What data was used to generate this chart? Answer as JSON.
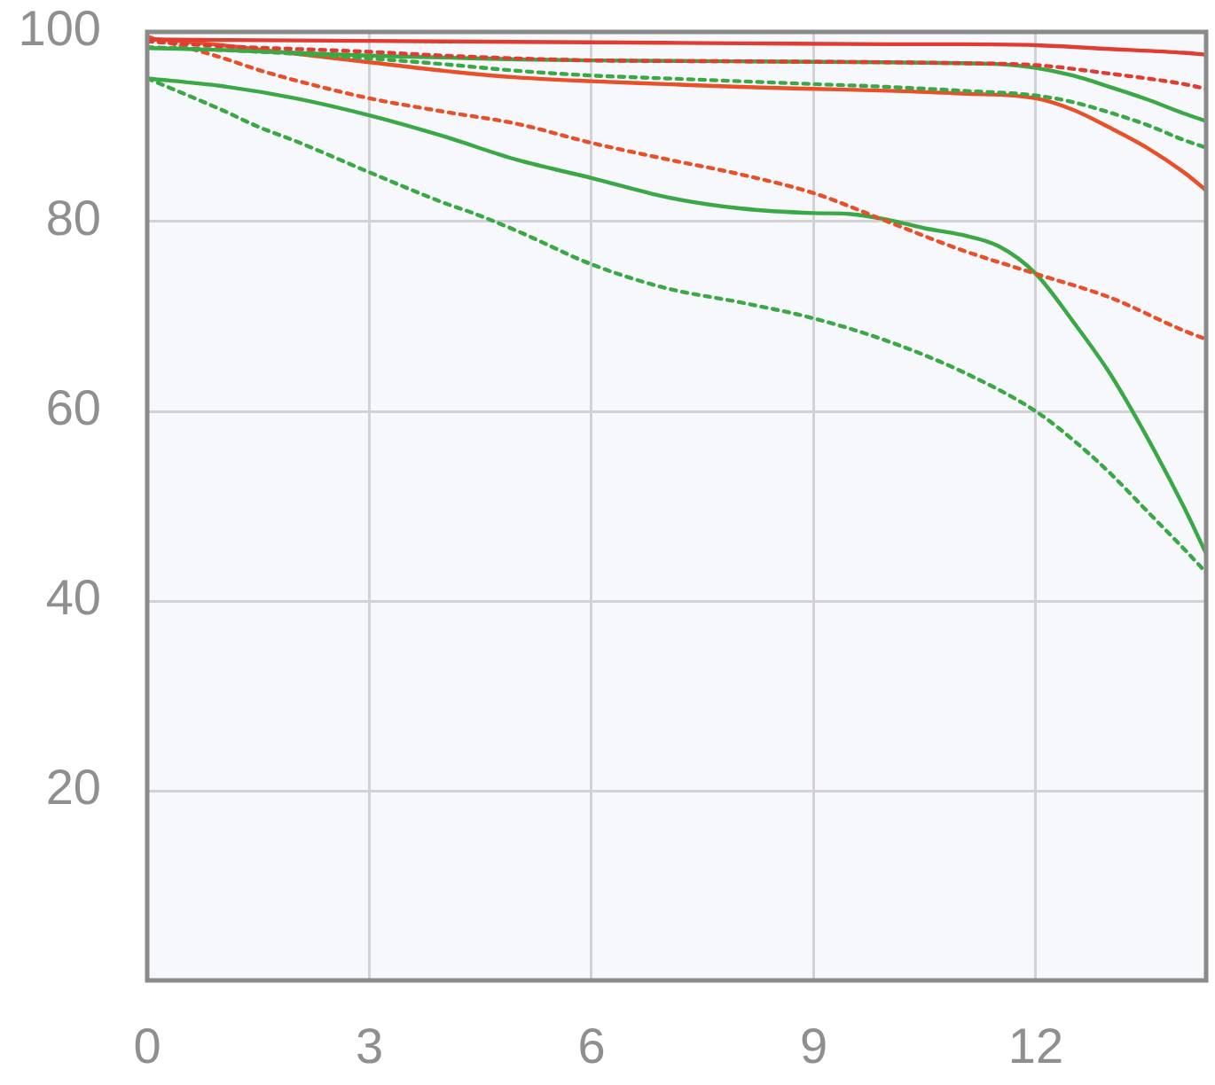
{
  "chart_data": {
    "type": "line",
    "xlim": [
      0,
      14.3
    ],
    "xticks": [
      0,
      3,
      6,
      9,
      12
    ],
    "ylim": [
      0,
      100
    ],
    "yticks": [
      20,
      40,
      60,
      80,
      100
    ],
    "grid": true,
    "marker": "none",
    "series": [
      {
        "color": "#e03c31",
        "line_style": "solid",
        "x": [
          0,
          2,
          4,
          6,
          8,
          10,
          11,
          12,
          13,
          14,
          14.3
        ],
        "values": [
          99.2,
          99.1,
          99,
          98.9,
          98.8,
          98.7,
          98.7,
          98.6,
          98.2,
          97.8,
          97.6
        ]
      },
      {
        "color": "#e03c31",
        "line_style": "dotted",
        "x": [
          0,
          1,
          2,
          3,
          4,
          5,
          6,
          8,
          10,
          11,
          12,
          13,
          14,
          14.3
        ],
        "values": [
          99,
          98.5,
          98.2,
          97.9,
          97.5,
          97.2,
          97,
          96.9,
          96.8,
          96.7,
          96.5,
          95.6,
          94.5,
          94
        ]
      },
      {
        "color": "#3aa845",
        "line_style": "solid",
        "x": [
          0,
          1,
          2,
          3,
          4,
          5,
          6,
          8,
          10,
          11,
          11.5,
          12,
          12.5,
          13,
          13.5,
          14,
          14.3
        ],
        "values": [
          98.3,
          98.1,
          97.8,
          97.5,
          97.3,
          97.1,
          97,
          96.9,
          96.8,
          96.7,
          96.6,
          96.2,
          95.4,
          94.2,
          92.9,
          91.4,
          90.6
        ]
      },
      {
        "color": "#3aa845",
        "line_style": "dotted",
        "x": [
          0,
          1,
          2,
          3,
          4,
          5,
          6,
          7,
          8,
          9,
          10,
          11,
          12,
          12.5,
          13,
          13.5,
          14,
          14.3
        ],
        "values": [
          98.4,
          98.1,
          97.7,
          97.2,
          96.6,
          95.9,
          95.4,
          95.1,
          94.8,
          94.5,
          94.2,
          93.8,
          93.3,
          92.6,
          91.5,
          90.2,
          88.6,
          87.8
        ]
      },
      {
        "color": "#e8502a",
        "line_style": "solid",
        "x": [
          0,
          1,
          2,
          3,
          4,
          5,
          6,
          7,
          8,
          9,
          10,
          11,
          12,
          12.5,
          13,
          13.5,
          14,
          14.3
        ],
        "values": [
          99.3,
          98.6,
          97.7,
          96.8,
          95.9,
          95.2,
          94.8,
          94.5,
          94.2,
          94,
          93.8,
          93.5,
          93,
          91.8,
          89.9,
          87.8,
          85.2,
          83.3
        ]
      },
      {
        "color": "#e8502a",
        "line_style": "dotted",
        "x": [
          0,
          1,
          1.5,
          2,
          3,
          4,
          5,
          6,
          7,
          8,
          9,
          10,
          11,
          12,
          13,
          14,
          14.3
        ],
        "values": [
          99.5,
          97.3,
          96,
          94.9,
          93,
          91.6,
          90.3,
          88.3,
          86.6,
          85,
          83,
          80,
          77,
          74.5,
          72,
          68.5,
          67.6
        ]
      },
      {
        "color": "#3aa845",
        "line_style": "solid",
        "x": [
          0,
          1,
          2,
          3,
          4,
          5,
          6,
          7,
          8,
          9,
          9.5,
          10,
          10.5,
          11,
          11.5,
          12,
          12.5,
          13,
          13.5,
          14,
          14.3
        ],
        "values": [
          95.1,
          94.3,
          93,
          91.2,
          89,
          86.5,
          84.6,
          82.6,
          81.4,
          80.9,
          80.8,
          80.2,
          79.3,
          78.6,
          77.4,
          74.5,
          69.5,
          64,
          57.3,
          49.9,
          45
        ]
      },
      {
        "color": "#3aa845",
        "line_style": "dotted",
        "x": [
          0,
          1,
          1.5,
          2,
          3,
          4,
          4.4,
          5,
          6,
          7,
          8,
          9,
          10,
          11,
          12,
          12.5,
          13,
          13.5,
          14,
          14.3
        ],
        "values": [
          95.1,
          91.8,
          90,
          88.5,
          85.2,
          82,
          80.9,
          79,
          75.5,
          73,
          71.5,
          69.8,
          67.4,
          64.2,
          60,
          57,
          53.5,
          49.5,
          45.5,
          43
        ]
      }
    ]
  }
}
